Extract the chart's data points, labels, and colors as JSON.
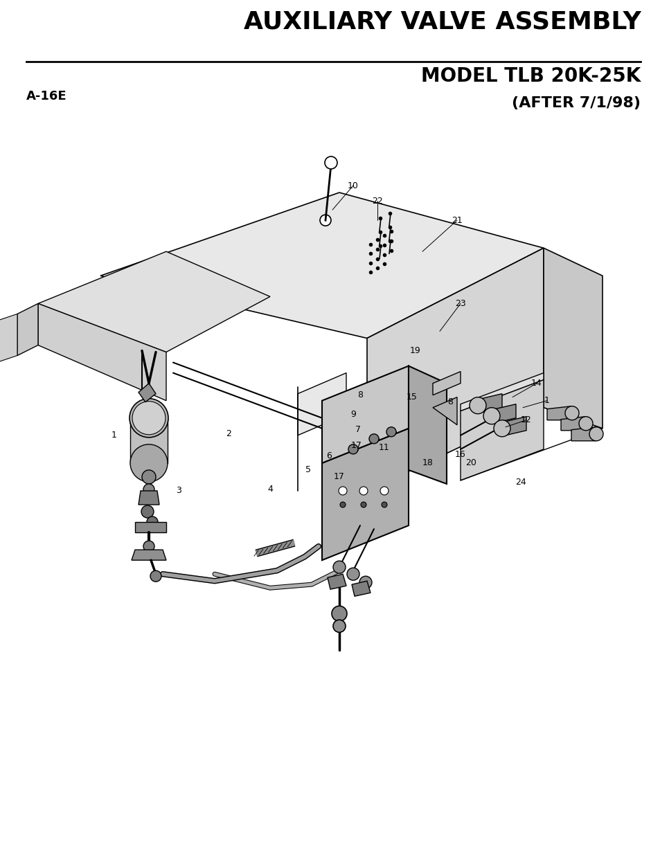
{
  "title": "AUXILIARY VALVE ASSEMBLY",
  "subtitle": "MODEL TLB 20K-25K",
  "subtitle2": "(AFTER 7/1/98)",
  "part_number": "A-16E",
  "bg_color": "#ffffff",
  "title_fontsize": 26,
  "subtitle_fontsize": 20,
  "subtitle2_fontsize": 16,
  "part_fontsize": 13,
  "label_fontsize": 9
}
